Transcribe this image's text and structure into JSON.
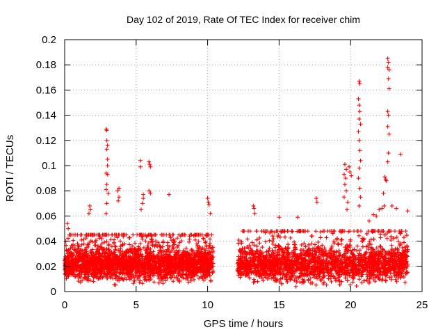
{
  "chart_data": {
    "type": "scatter",
    "title": "Day 102 of 2019, Rate Of TEC Index for receiver chim",
    "xlabel": "GPS time / hours",
    "ylabel": "ROTI / TECUs",
    "xlim": [
      0,
      25
    ],
    "ylim": [
      0,
      0.2
    ],
    "xticks": [
      0,
      5,
      10,
      15,
      20,
      25
    ],
    "xtick_labels": [
      "0",
      "5",
      "10",
      "15",
      "20",
      "25"
    ],
    "yticks": [
      0,
      0.02,
      0.04,
      0.06,
      0.08,
      0.1,
      0.12,
      0.14,
      0.16,
      0.18,
      0.2
    ],
    "ytick_labels": [
      "0",
      "0.02",
      "0.04",
      "0.06",
      "0.08",
      "0.1",
      "0.12",
      "0.14",
      "0.16",
      "0.18",
      "0.2"
    ],
    "grid": true,
    "marker": "+",
    "marker_color": "#ff0000",
    "data_gap_hours": [
      10.4,
      12.1
    ],
    "series": [
      {
        "name": "ROTI",
        "points": [
          [
            2.9,
            0.129
          ],
          [
            2.95,
            0.128
          ],
          [
            2.95,
            0.12
          ],
          [
            3.0,
            0.116
          ],
          [
            2.95,
            0.113
          ],
          [
            3.0,
            0.105
          ],
          [
            3.0,
            0.1
          ],
          [
            2.9,
            0.094
          ],
          [
            3.0,
            0.093
          ],
          [
            2.95,
            0.085
          ],
          [
            2.9,
            0.081
          ],
          [
            3.05,
            0.078
          ],
          [
            2.95,
            0.07
          ],
          [
            2.9,
            0.062
          ],
          [
            3.8,
            0.082
          ],
          [
            3.7,
            0.08
          ],
          [
            3.8,
            0.075
          ],
          [
            3.75,
            0.072
          ],
          [
            5.3,
            0.104
          ],
          [
            5.3,
            0.099
          ],
          [
            5.9,
            0.103
          ],
          [
            5.95,
            0.101
          ],
          [
            6.0,
            0.099
          ],
          [
            5.5,
            0.077
          ],
          [
            5.5,
            0.074
          ],
          [
            5.45,
            0.07
          ],
          [
            5.35,
            0.065
          ],
          [
            5.9,
            0.08
          ],
          [
            6.0,
            0.078
          ],
          [
            7.3,
            0.077
          ],
          [
            1.75,
            0.068
          ],
          [
            1.8,
            0.065
          ],
          [
            1.7,
            0.062
          ],
          [
            10.0,
            0.074
          ],
          [
            10.05,
            0.071
          ],
          [
            10.1,
            0.069
          ],
          [
            10.2,
            0.062
          ],
          [
            0.2,
            0.054
          ],
          [
            0.25,
            0.05
          ],
          [
            13.2,
            0.068
          ],
          [
            13.25,
            0.066
          ],
          [
            13.3,
            0.062
          ],
          [
            15.0,
            0.059
          ],
          [
            16.3,
            0.059
          ],
          [
            17.6,
            0.074
          ],
          [
            17.65,
            0.071
          ],
          [
            19.6,
            0.101
          ],
          [
            19.7,
            0.097
          ],
          [
            19.55,
            0.093
          ],
          [
            19.65,
            0.09
          ],
          [
            19.6,
            0.085
          ],
          [
            19.7,
            0.08
          ],
          [
            19.55,
            0.075
          ],
          [
            19.8,
            0.071
          ],
          [
            19.75,
            0.065
          ],
          [
            19.9,
            0.099
          ],
          [
            19.95,
            0.095
          ],
          [
            20.05,
            0.092
          ],
          [
            20.6,
            0.167
          ],
          [
            20.65,
            0.165
          ],
          [
            20.55,
            0.153
          ],
          [
            20.6,
            0.148
          ],
          [
            20.65,
            0.143
          ],
          [
            20.6,
            0.137
          ],
          [
            20.7,
            0.133
          ],
          [
            20.55,
            0.127
          ],
          [
            20.6,
            0.12
          ],
          [
            20.65,
            0.112
          ],
          [
            20.7,
            0.104
          ],
          [
            20.6,
            0.098
          ],
          [
            20.55,
            0.09
          ],
          [
            20.65,
            0.082
          ],
          [
            20.7,
            0.075
          ],
          [
            20.6,
            0.068
          ],
          [
            21.3,
            0.056
          ],
          [
            21.6,
            0.061
          ],
          [
            22.0,
            0.065
          ],
          [
            22.4,
            0.091
          ],
          [
            22.45,
            0.089
          ],
          [
            22.5,
            0.088
          ],
          [
            22.3,
            0.078
          ],
          [
            22.35,
            0.068
          ],
          [
            22.6,
            0.185
          ],
          [
            22.65,
            0.182
          ],
          [
            22.6,
            0.178
          ],
          [
            22.7,
            0.176
          ],
          [
            22.65,
            0.169
          ],
          [
            22.7,
            0.161
          ],
          [
            22.6,
            0.143
          ],
          [
            22.65,
            0.14
          ],
          [
            22.6,
            0.131
          ],
          [
            22.7,
            0.125
          ],
          [
            22.65,
            0.11
          ],
          [
            22.6,
            0.103
          ],
          [
            22.9,
            0.068
          ],
          [
            23.5,
            0.109
          ],
          [
            24.0,
            0.064
          ],
          [
            22.2,
            0.066
          ],
          [
            21.8,
            0.06
          ],
          [
            23.2,
            0.066
          ]
        ],
        "dense_band": [
          {
            "x0": 0.0,
            "x1": 10.4,
            "base": 0.022,
            "spread": 0.012,
            "upper": 0.045
          },
          {
            "x0": 12.1,
            "x1": 24.0,
            "base": 0.022,
            "spread": 0.013,
            "upper": 0.048
          }
        ]
      }
    ]
  }
}
